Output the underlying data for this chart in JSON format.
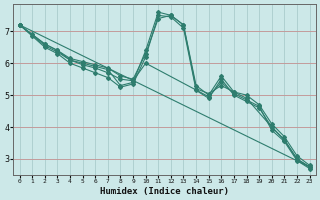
{
  "xlabel": "Humidex (Indice chaleur)",
  "bg_color": "#cce8e8",
  "grid_color": "#aacccc",
  "line_color": "#2e7d6e",
  "xlim": [
    -0.5,
    23.5
  ],
  "ylim": [
    2.5,
    7.85
  ],
  "xticks": [
    0,
    1,
    2,
    3,
    4,
    5,
    6,
    7,
    8,
    9,
    10,
    11,
    12,
    13,
    14,
    15,
    16,
    17,
    18,
    19,
    20,
    21,
    22,
    23
  ],
  "yticks": [
    3,
    4,
    5,
    6,
    7
  ],
  "lines": [
    {
      "x": [
        0,
        1,
        2,
        3,
        4,
        5,
        6,
        7,
        8,
        9,
        10,
        11,
        12,
        13,
        14,
        15,
        16,
        17,
        18,
        19,
        20,
        21,
        22,
        23
      ],
      "y": [
        7.2,
        6.9,
        6.6,
        6.4,
        6.1,
        6.0,
        5.9,
        5.8,
        5.3,
        5.4,
        6.4,
        7.6,
        7.5,
        7.2,
        5.3,
        5.0,
        5.6,
        5.1,
        5.0,
        4.7,
        4.1,
        3.7,
        3.1,
        2.8
      ]
    },
    {
      "x": [
        0,
        2,
        3,
        4,
        5,
        6,
        7,
        8,
        9,
        10,
        11,
        12,
        13,
        14,
        15,
        16,
        17,
        18,
        20,
        21,
        22,
        23
      ],
      "y": [
        7.2,
        6.6,
        6.4,
        6.15,
        6.05,
        5.95,
        5.85,
        5.6,
        5.5,
        6.3,
        7.4,
        7.5,
        7.2,
        5.2,
        5.05,
        5.3,
        5.1,
        4.9,
        4.0,
        3.6,
        3.0,
        2.75
      ]
    },
    {
      "x": [
        0,
        2,
        3,
        4,
        5,
        6,
        7,
        8,
        9,
        10,
        15,
        16,
        17,
        18,
        19,
        20,
        21,
        22,
        23
      ],
      "y": [
        7.2,
        6.55,
        6.35,
        6.1,
        5.95,
        5.85,
        5.7,
        5.5,
        5.45,
        6.0,
        4.95,
        5.4,
        5.05,
        4.85,
        4.65,
        3.9,
        3.55,
        2.95,
        2.7
      ]
    },
    {
      "x": [
        0,
        1,
        2,
        3,
        4,
        5,
        6,
        7,
        8,
        9,
        10,
        11,
        12,
        13,
        14,
        15,
        16,
        17,
        18,
        19,
        20,
        21,
        22,
        23
      ],
      "y": [
        7.2,
        6.85,
        6.5,
        6.3,
        6.0,
        5.85,
        5.7,
        5.55,
        5.25,
        5.35,
        6.2,
        7.5,
        7.45,
        7.1,
        5.15,
        4.9,
        5.5,
        5.0,
        4.8,
        4.6,
        4.0,
        3.6,
        3.0,
        2.75
      ]
    },
    {
      "x": [
        0,
        23
      ],
      "y": [
        7.2,
        2.75
      ]
    }
  ]
}
